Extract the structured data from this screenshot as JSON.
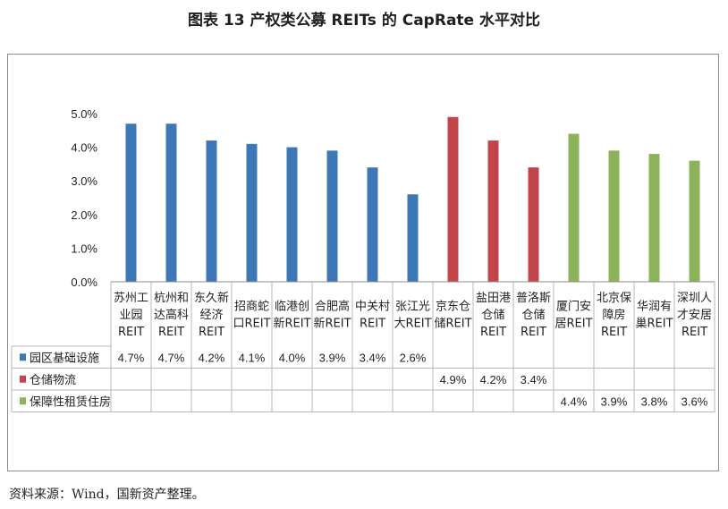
{
  "title": "图表 13  产权类公募 REITs 的 CapRate 水平对比",
  "source": "资料来源：Wind，国新资产整理。",
  "chart_data": {
    "type": "bar",
    "ylim": [
      0,
      5
    ],
    "yticks": [
      "0.0%",
      "1.0%",
      "2.0%",
      "3.0%",
      "4.0%",
      "5.0%"
    ],
    "grid": false,
    "categories": [
      [
        "苏州工",
        "业园",
        "REIT"
      ],
      [
        "杭州和",
        "达高科",
        "REIT"
      ],
      [
        "东久新",
        "经济",
        "REIT"
      ],
      [
        "招商蛇",
        "口REIT"
      ],
      [
        "临港创",
        "新REIT"
      ],
      [
        "合肥高",
        "新REIT"
      ],
      [
        "中关村",
        "REIT"
      ],
      [
        "张江光",
        "大REIT"
      ],
      [
        "京东仓",
        "储REIT"
      ],
      [
        "盐田港",
        "仓储",
        "REIT"
      ],
      [
        "普洛斯",
        "仓储",
        "REIT"
      ],
      [
        "厦门安",
        "居REIT"
      ],
      [
        "北京保",
        "障房",
        "REIT"
      ],
      [
        "华润有",
        "巢REIT"
      ],
      [
        "深圳人",
        "才安居",
        "REIT"
      ]
    ],
    "series": [
      {
        "name": "园区基础设施",
        "color": "#3e77b6",
        "values": [
          4.7,
          4.7,
          4.2,
          4.1,
          4.0,
          3.9,
          3.4,
          2.6,
          null,
          null,
          null,
          null,
          null,
          null,
          null
        ],
        "labels": [
          "4.7%",
          "4.7%",
          "4.2%",
          "4.1%",
          "4.0%",
          "3.9%",
          "3.4%",
          "2.6%",
          "",
          "",
          "",
          "",
          "",
          "",
          ""
        ]
      },
      {
        "name": "仓储物流",
        "color": "#c1454b",
        "values": [
          null,
          null,
          null,
          null,
          null,
          null,
          null,
          null,
          4.9,
          4.2,
          3.4,
          null,
          null,
          null,
          null
        ],
        "labels": [
          "",
          "",
          "",
          "",
          "",
          "",
          "",
          "",
          "4.9%",
          "4.2%",
          "3.4%",
          "",
          "",
          "",
          ""
        ]
      },
      {
        "name": "保障性租赁住房",
        "color": "#8db35a",
        "values": [
          null,
          null,
          null,
          null,
          null,
          null,
          null,
          null,
          null,
          null,
          null,
          4.4,
          3.9,
          3.8,
          3.6
        ],
        "labels": [
          "",
          "",
          "",
          "",
          "",
          "",
          "",
          "",
          "",
          "",
          "",
          "4.4%",
          "3.9%",
          "3.8%",
          "3.6%"
        ]
      }
    ]
  }
}
